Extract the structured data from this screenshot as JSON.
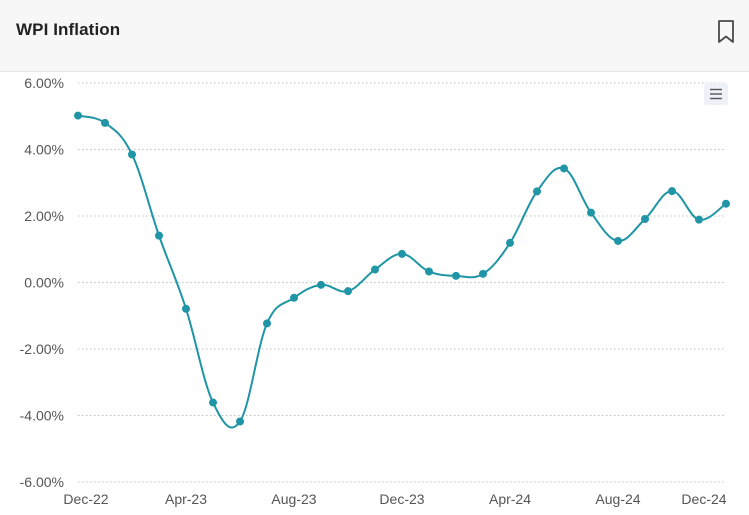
{
  "header": {
    "title": "WPI Inflation"
  },
  "icons": {
    "bookmark": "bookmark-icon",
    "menu": "hamburger-menu-icon"
  },
  "colors": {
    "line": "#1f95a6",
    "grid": "#bfbfbf",
    "header_bg": "#f7f7f7"
  },
  "chart_data": {
    "type": "line",
    "title": "WPI Inflation",
    "xlabel": "",
    "ylabel": "",
    "x": [
      "Dec-22",
      "Jan-23",
      "Feb-23",
      "Mar-23",
      "Apr-23",
      "May-23",
      "Jun-23",
      "Jul-23",
      "Aug-23",
      "Sep-23",
      "Oct-23",
      "Nov-23",
      "Dec-23",
      "Jan-24",
      "Feb-24",
      "Mar-24",
      "Apr-24",
      "May-24",
      "Jun-24",
      "Jul-24",
      "Aug-24",
      "Sep-24",
      "Oct-24",
      "Nov-24",
      "Dec-24"
    ],
    "series": [
      {
        "values": [
          5.02,
          4.8,
          3.85,
          1.41,
          -0.79,
          -3.61,
          -4.18,
          -1.23,
          -0.46,
          -0.07,
          -0.26,
          0.39,
          0.86,
          0.33,
          0.2,
          0.26,
          1.19,
          2.74,
          3.43,
          2.1,
          1.25,
          1.91,
          2.75,
          1.89,
          2.37
        ]
      }
    ],
    "x_tick_labels": [
      "Dec-22",
      "Apr-23",
      "Aug-23",
      "Dec-23",
      "Apr-24",
      "Aug-24",
      "Dec-24"
    ],
    "x_tick_indices": [
      0,
      4,
      8,
      12,
      16,
      20,
      24
    ],
    "y_ticks": [
      "6.00%",
      "4.00%",
      "2.00%",
      "0.00%",
      "-2.00%",
      "-4.00%",
      "-6.00%"
    ],
    "y_tick_values": [
      6,
      4,
      2,
      0,
      -2,
      -4,
      -6
    ],
    "ylim": [
      -6,
      6
    ],
    "grid": true,
    "legend": "none"
  }
}
